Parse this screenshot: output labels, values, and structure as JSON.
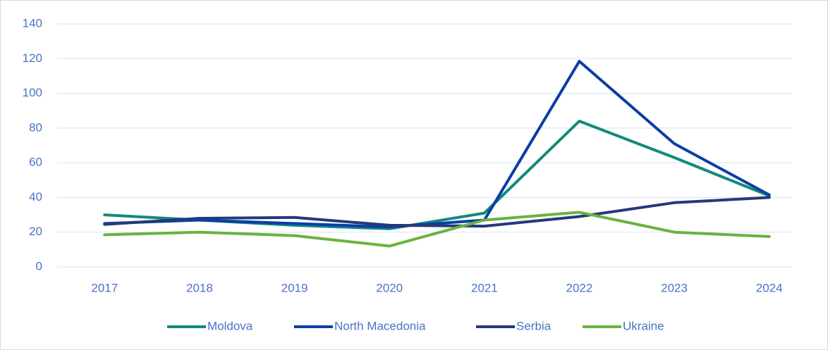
{
  "chart_data": {
    "type": "line",
    "categories": [
      "2017",
      "2018",
      "2019",
      "2020",
      "2021",
      "2022",
      "2023",
      "2024"
    ],
    "series": [
      {
        "name": "Moldova",
        "color": "#12897c",
        "values": [
          30,
          27,
          24,
          22,
          31,
          84,
          63,
          41
        ]
      },
      {
        "name": "North Macedonia",
        "color": "#0b3ea6",
        "values": [
          25,
          27,
          25,
          23,
          27,
          118.5,
          71,
          41.5
        ]
      },
      {
        "name": "Serbia",
        "color": "#25397a",
        "values": [
          24.5,
          28,
          28.5,
          24,
          23.5,
          29,
          37,
          40
        ]
      },
      {
        "name": "Ukraine",
        "color": "#6ab33e",
        "values": [
          18.5,
          20,
          18,
          12,
          27,
          31.5,
          20,
          17.5
        ]
      }
    ],
    "ylim": [
      0,
      140
    ],
    "yticks": [
      0,
      20,
      40,
      60,
      80,
      100,
      120,
      140
    ],
    "grid": true,
    "legend": "bottom"
  }
}
